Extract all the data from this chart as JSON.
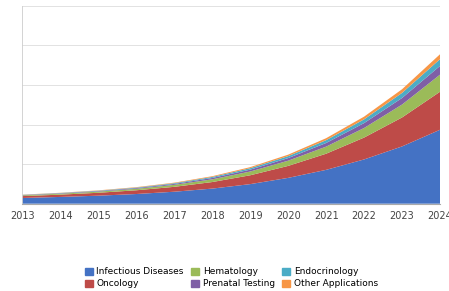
{
  "years": [
    2013,
    2014,
    2015,
    2016,
    2017,
    2018,
    2019,
    2020,
    2021,
    2022,
    2023,
    2024
  ],
  "series": {
    "Infectious Diseases": [
      55,
      65,
      77,
      93,
      115,
      145,
      188,
      248,
      325,
      425,
      550,
      710
    ],
    "Oncology": [
      18,
      22,
      28,
      36,
      47,
      63,
      85,
      115,
      155,
      210,
      278,
      365
    ],
    "Hematology": [
      7,
      9,
      11,
      14,
      19,
      26,
      36,
      50,
      68,
      92,
      124,
      164
    ],
    "Prenatal Testing": [
      3,
      4,
      5,
      7,
      9,
      13,
      18,
      25,
      35,
      47,
      63,
      84
    ],
    "Endocrinology": [
      2,
      3,
      4,
      5,
      7,
      10,
      14,
      19,
      27,
      36,
      49,
      65
    ],
    "Other Applications": [
      2,
      2,
      3,
      4,
      5,
      7,
      10,
      14,
      19,
      26,
      35,
      47
    ]
  },
  "colors": {
    "Infectious Diseases": "#4472C4",
    "Oncology": "#BE4B48",
    "Hematology": "#9BBB59",
    "Prenatal Testing": "#7F5FA6",
    "Endocrinology": "#4BACC6",
    "Other Applications": "#F79646"
  },
  "legend_order": [
    "Infectious Diseases",
    "Oncology",
    "Hematology",
    "Prenatal Testing",
    "Endocrinology",
    "Other Applications"
  ],
  "background_color": "#FFFFFF",
  "ylim": [
    0,
    1900
  ],
  "xlim": [
    2013,
    2024
  ]
}
